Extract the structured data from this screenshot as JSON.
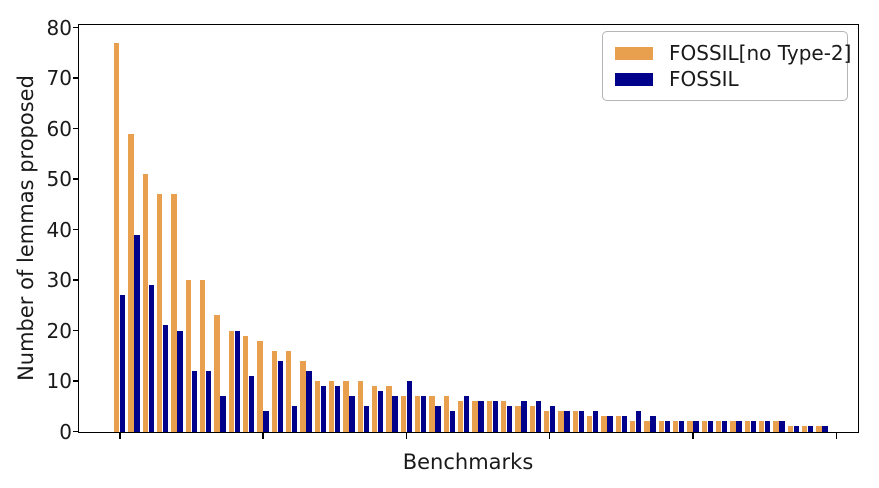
{
  "figure": {
    "background": "#ffffff",
    "text_color": "#1a1a1a"
  },
  "chart_data": {
    "type": "bar",
    "title": "",
    "xlabel": "Benchmarks",
    "ylabel": "Number of lemmas proposed",
    "ylim": [
      0,
      81
    ],
    "yticks": [
      0,
      10,
      20,
      30,
      40,
      50,
      60,
      70,
      80
    ],
    "x_tick_labels_visible": false,
    "x_tick_category_indices": [
      0,
      10,
      20,
      30,
      40,
      50
    ],
    "grid": false,
    "num_benchmarks": 50,
    "legend_position": "upper right",
    "series": [
      {
        "name": "FOSSIL[no Type-2]",
        "color": "#E9A04E",
        "values": [
          77,
          59,
          51,
          47,
          47,
          30,
          30,
          23,
          20,
          19,
          18,
          16,
          16,
          14,
          10,
          10,
          10,
          10,
          9,
          9,
          7,
          7,
          7,
          7,
          6,
          6,
          6,
          6,
          5,
          5,
          4,
          4,
          4,
          3,
          3,
          3,
          2,
          2,
          2,
          2,
          2,
          2,
          2,
          2,
          2,
          2,
          2,
          1,
          1,
          1
        ]
      },
      {
        "name": "FOSSIL",
        "color": "#00008B",
        "values": [
          27,
          39,
          29,
          21,
          20,
          12,
          12,
          7,
          20,
          11,
          4,
          14,
          5,
          12,
          9,
          9,
          7,
          5,
          8,
          7,
          10,
          7,
          5,
          4,
          7,
          6,
          6,
          5,
          6,
          6,
          5,
          4,
          4,
          4,
          3,
          3,
          4,
          3,
          2,
          2,
          2,
          2,
          2,
          2,
          2,
          2,
          2,
          1,
          1,
          1
        ]
      }
    ]
  }
}
